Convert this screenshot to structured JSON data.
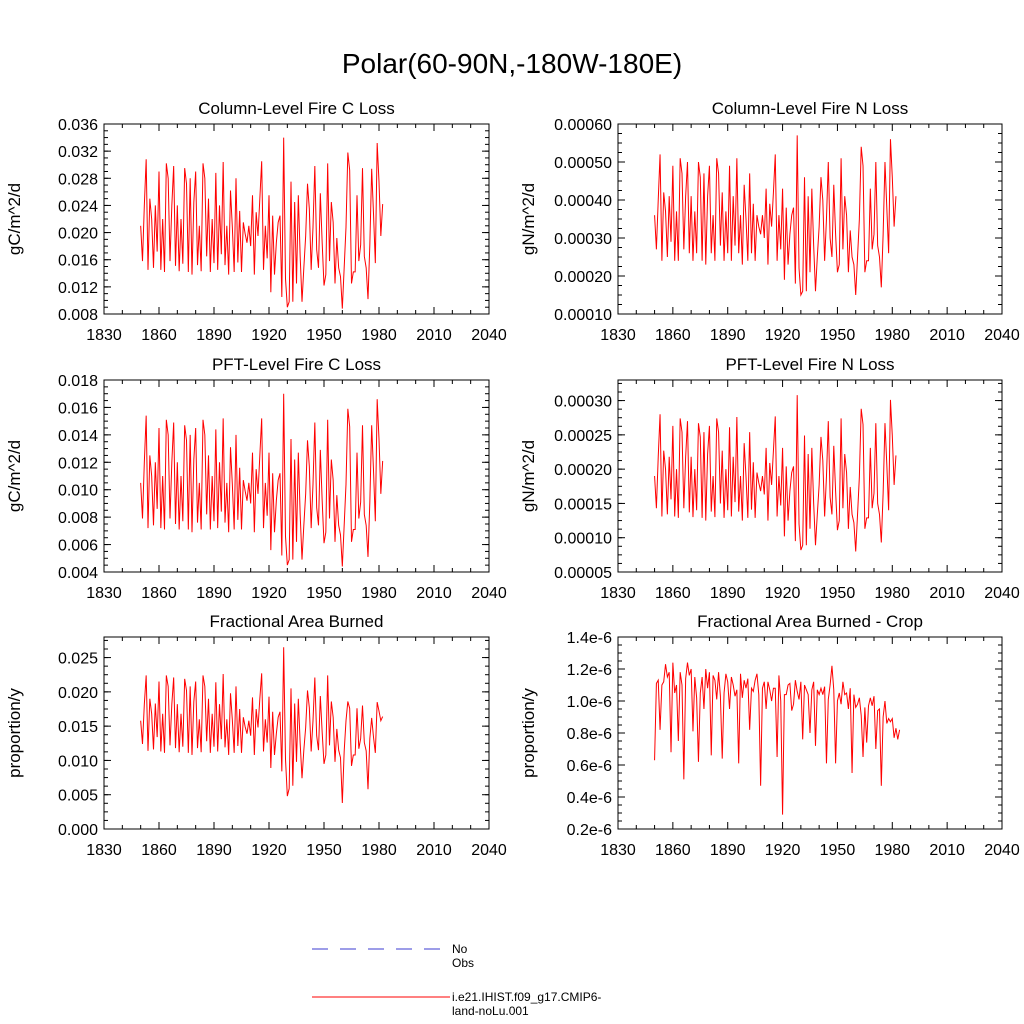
{
  "title": "Polar(60-90N,-180W-180E)",
  "legend": {
    "obs_label": "No Obs",
    "model_label": "i.e21.IHIST.f09_g17.CMIP6-land-noLu.001",
    "obs_color": "#3b3bd1",
    "model_color": "#ff0000"
  },
  "x_ticks": [
    "1830",
    "1860",
    "1890",
    "1920",
    "1950",
    "1980",
    "2010",
    "2040"
  ],
  "chart_data": [
    {
      "type": "line",
      "title": "Column-Level Fire C Loss",
      "ylabel": "gC/m^2/d",
      "xlim": [
        1830,
        2040
      ],
      "ylim": [
        0.008,
        0.036
      ],
      "y_ticks": [
        "0.008",
        "0.012",
        "0.016",
        "0.020",
        "0.024",
        "0.028",
        "0.032",
        "0.036"
      ],
      "series": [
        {
          "x_start": 1850,
          "values": [
            0.021,
            0.0158,
            0.024,
            0.0308,
            0.0145,
            0.025,
            0.022,
            0.0148,
            0.024,
            0.0172,
            0.029,
            0.0145,
            0.022,
            0.0142,
            0.0302,
            0.028,
            0.0158,
            0.024,
            0.0298,
            0.0151,
            0.024,
            0.0143,
            0.022,
            0.0154,
            0.0295,
            0.0272,
            0.0142,
            0.028,
            0.0138,
            0.0245,
            0.029,
            0.0152,
            0.021,
            0.0143,
            0.0302,
            0.028,
            0.0165,
            0.025,
            0.0142,
            0.022,
            0.0155,
            0.0288,
            0.0145,
            0.024,
            0.0168,
            0.0304,
            0.0152,
            0.021,
            0.0138,
            0.0262,
            0.0208,
            0.0142,
            0.028,
            0.0156,
            0.0232,
            0.0142,
            0.0215,
            0.0198,
            0.0185,
            0.021,
            0.018,
            0.0255,
            0.0138,
            0.023,
            0.0195,
            0.025,
            0.0305,
            0.0145,
            0.021,
            0.0162,
            0.0255,
            0.0112,
            0.0225,
            0.0138,
            0.0185,
            0.0215,
            0.0225,
            0.0105,
            0.034,
            0.0132,
            0.009,
            0.0098,
            0.0275,
            0.0098,
            0.0245,
            0.0125,
            0.0255,
            0.0165,
            0.0098,
            0.0148,
            0.0195,
            0.0272,
            0.0235,
            0.0145,
            0.0208,
            0.0298,
            0.0175,
            0.0148,
            0.0258,
            0.0185,
            0.0122,
            0.0138,
            0.0302,
            0.0158,
            0.0245,
            0.0215,
            0.0125,
            0.0192,
            0.0148,
            0.0135,
            0.0088,
            0.0148,
            0.0208,
            0.0318,
            0.0292,
            0.0125,
            0.0142,
            0.0142,
            0.0255,
            0.0158,
            0.0182,
            0.0295,
            0.0165,
            0.0148,
            0.0102,
            0.0182,
            0.0294,
            0.0228,
            0.0155,
            0.0332,
            0.0275,
            0.0195,
            0.0242
          ]
        }
      ]
    },
    {
      "type": "line",
      "title": "Column-Level Fire N Loss",
      "ylabel": "gN/m^2/d",
      "xlim": [
        1830,
        2040
      ],
      "ylim": [
        0.0001,
        0.0006
      ],
      "y_ticks": [
        "0.00010",
        "0.00020",
        "0.00030",
        "0.00040",
        "0.00050",
        "0.00060"
      ],
      "series": [
        {
          "x_start": 1850,
          "values": [
            0.00036,
            0.00027,
            0.0004,
            0.00052,
            0.00024,
            0.00042,
            0.00037,
            0.00025,
            0.00041,
            0.00029,
            0.00049,
            0.00024,
            0.00037,
            0.00024,
            0.00051,
            0.00047,
            0.00027,
            0.00041,
            0.0005,
            0.00026,
            0.00041,
            0.00024,
            0.00037,
            0.00026,
            0.0005,
            0.00046,
            0.00024,
            0.00047,
            0.00023,
            0.00041,
            0.00049,
            0.00026,
            0.00036,
            0.00024,
            0.00051,
            0.00047,
            0.00028,
            0.00042,
            0.00024,
            0.00037,
            0.00026,
            0.00049,
            0.00024,
            0.00041,
            0.00028,
            0.00051,
            0.00026,
            0.00036,
            0.00023,
            0.00044,
            0.00035,
            0.00024,
            0.00047,
            0.00026,
            0.00039,
            0.00024,
            0.00036,
            0.00033,
            0.00031,
            0.00036,
            0.0003,
            0.00043,
            0.00023,
            0.00039,
            0.00033,
            0.00042,
            0.00052,
            0.00024,
            0.00036,
            0.00027,
            0.00043,
            0.00019,
            0.00038,
            0.00023,
            0.00031,
            0.00036,
            0.00038,
            0.00018,
            0.00057,
            0.00022,
            0.00015,
            0.00016,
            0.00046,
            0.00016,
            0.00041,
            0.00021,
            0.00043,
            0.00028,
            0.00016,
            0.00025,
            0.00033,
            0.00046,
            0.0004,
            0.00024,
            0.00035,
            0.0005,
            0.0003,
            0.00025,
            0.00044,
            0.00031,
            0.00021,
            0.00023,
            0.00051,
            0.00027,
            0.00041,
            0.00036,
            0.00021,
            0.00032,
            0.00025,
            0.00023,
            0.00015,
            0.00025,
            0.00035,
            0.00054,
            0.00049,
            0.00021,
            0.00024,
            0.00024,
            0.00043,
            0.00027,
            0.00031,
            0.0005,
            0.00028,
            0.00025,
            0.00017,
            0.00031,
            0.0005,
            0.00038,
            0.00026,
            0.00056,
            0.00046,
            0.00033,
            0.00041
          ]
        }
      ]
    },
    {
      "type": "line",
      "title": "PFT-Level Fire C Loss",
      "ylabel": "gC/m^2/d",
      "xlim": [
        1830,
        2040
      ],
      "ylim": [
        0.004,
        0.018
      ],
      "y_ticks": [
        "0.004",
        "0.006",
        "0.008",
        "0.010",
        "0.012",
        "0.014",
        "0.016",
        "0.018"
      ],
      "series": [
        {
          "x_start": 1850,
          "values": [
            0.0105,
            0.0079,
            0.012,
            0.0154,
            0.0072,
            0.0125,
            0.011,
            0.0074,
            0.012,
            0.0086,
            0.0145,
            0.0072,
            0.011,
            0.0071,
            0.0151,
            0.014,
            0.0079,
            0.012,
            0.0149,
            0.0075,
            0.012,
            0.0071,
            0.011,
            0.0077,
            0.0147,
            0.0136,
            0.0071,
            0.014,
            0.0069,
            0.0122,
            0.0145,
            0.0076,
            0.0105,
            0.0071,
            0.0151,
            0.014,
            0.0082,
            0.0125,
            0.0071,
            0.011,
            0.0077,
            0.0144,
            0.0072,
            0.012,
            0.0084,
            0.0152,
            0.0076,
            0.0105,
            0.0069,
            0.0131,
            0.0104,
            0.0071,
            0.014,
            0.0078,
            0.0116,
            0.0071,
            0.0107,
            0.0099,
            0.0092,
            0.0105,
            0.009,
            0.0127,
            0.0069,
            0.0115,
            0.0097,
            0.0125,
            0.0152,
            0.0072,
            0.0105,
            0.0081,
            0.0127,
            0.0056,
            0.0112,
            0.0069,
            0.0092,
            0.0107,
            0.0112,
            0.0052,
            0.017,
            0.0066,
            0.0045,
            0.0049,
            0.0137,
            0.0049,
            0.0122,
            0.0062,
            0.0127,
            0.0082,
            0.0049,
            0.0074,
            0.0097,
            0.0136,
            0.0117,
            0.0072,
            0.0104,
            0.0149,
            0.0087,
            0.0074,
            0.0129,
            0.0092,
            0.0061,
            0.0069,
            0.0151,
            0.0079,
            0.0122,
            0.0107,
            0.0062,
            0.0096,
            0.0074,
            0.0067,
            0.0044,
            0.0074,
            0.0104,
            0.0159,
            0.0146,
            0.0062,
            0.0071,
            0.0071,
            0.0127,
            0.0079,
            0.0091,
            0.0147,
            0.0082,
            0.0074,
            0.0051,
            0.0091,
            0.0147,
            0.0114,
            0.0077,
            0.0166,
            0.0137,
            0.0097,
            0.0121
          ]
        }
      ]
    },
    {
      "type": "line",
      "title": "PFT-Level Fire N Loss",
      "ylabel": "gN/m^2/d",
      "xlim": [
        1830,
        2040
      ],
      "ylim": [
        5e-05,
        0.00033
      ],
      "y_ticks": [
        "0.00005",
        "0.00010",
        "0.00015",
        "0.00020",
        "0.00025",
        "0.00030"
      ],
      "series": [
        {
          "x_start": 1850,
          "values": [
            0.00019,
            0.000143,
            0.000218,
            0.00028,
            0.000131,
            0.000227,
            0.0002,
            0.000134,
            0.000218,
            0.000156,
            0.000263,
            0.000131,
            0.0002,
            0.000129,
            0.000274,
            0.000254,
            0.000143,
            0.000218,
            0.00027,
            0.000137,
            0.000218,
            0.00013,
            0.0002,
            0.00014,
            0.000267,
            0.000247,
            0.000129,
            0.000254,
            0.000125,
            0.000222,
            0.000263,
            0.000138,
            0.00019,
            0.00013,
            0.000274,
            0.000254,
            0.00015,
            0.000227,
            0.000129,
            0.0002,
            0.00014,
            0.000261,
            0.000131,
            0.000218,
            0.000152,
            0.000276,
            0.000138,
            0.00019,
            0.000125,
            0.000238,
            0.000189,
            0.000129,
            0.000254,
            0.000141,
            0.00021,
            0.000129,
            0.000195,
            0.00018,
            0.000168,
            0.00019,
            0.000163,
            0.000231,
            0.000125,
            0.000209,
            0.000177,
            0.000227,
            0.000277,
            0.000131,
            0.00019,
            0.000147,
            0.000231,
            0.000102,
            0.000204,
            0.000125,
            0.000168,
            0.000195,
            0.000204,
            9.5e-05,
            0.000308,
            0.00012,
            8.2e-05,
            8.9e-05,
            0.000249,
            8.9e-05,
            0.000222,
            0.000113,
            0.000231,
            0.00015,
            8.9e-05,
            0.000134,
            0.000177,
            0.000247,
            0.000213,
            0.000131,
            0.000189,
            0.00027,
            0.000159,
            0.000134,
            0.000234,
            0.000168,
            0.000111,
            0.000125,
            0.000274,
            0.000143,
            0.000222,
            0.000195,
            0.000113,
            0.000174,
            0.000134,
            0.000122,
            8e-05,
            0.000134,
            0.000189,
            0.000288,
            0.000265,
            0.000113,
            0.000129,
            0.000129,
            0.000231,
            0.000143,
            0.000165,
            0.000267,
            0.00015,
            0.000134,
            9.3e-05,
            0.000165,
            0.000267,
            0.000207,
            0.00014,
            0.000301,
            0.000249,
            0.000177,
            0.00022
          ]
        }
      ]
    },
    {
      "type": "line",
      "title": "Fractional Area Burned",
      "ylabel": "proportion/y",
      "xlim": [
        1830,
        2040
      ],
      "ylim": [
        0,
        0.028
      ],
      "y_ticks": [
        "0.000",
        "0.005",
        "0.010",
        "0.015",
        "0.020",
        "0.025"
      ],
      "series": [
        {
          "x_start": 1850,
          "values": [
            0.0158,
            0.0124,
            0.0182,
            0.0224,
            0.0114,
            0.019,
            0.0168,
            0.0116,
            0.0183,
            0.0134,
            0.0215,
            0.0113,
            0.0168,
            0.0111,
            0.0224,
            0.0208,
            0.0122,
            0.0182,
            0.0221,
            0.0118,
            0.0182,
            0.0112,
            0.0168,
            0.012,
            0.0219,
            0.0202,
            0.0111,
            0.0208,
            0.0108,
            0.0186,
            0.0215,
            0.0118,
            0.016,
            0.0112,
            0.0224,
            0.0208,
            0.0128,
            0.019,
            0.0111,
            0.0168,
            0.012,
            0.0214,
            0.0113,
            0.0182,
            0.0131,
            0.0226,
            0.0119,
            0.016,
            0.0108,
            0.0198,
            0.0159,
            0.0111,
            0.0208,
            0.0121,
            0.0175,
            0.0111,
            0.0163,
            0.0149,
            0.0139,
            0.0158,
            0.0136,
            0.0192,
            0.0108,
            0.0175,
            0.0148,
            0.019,
            0.0227,
            0.0113,
            0.016,
            0.0126,
            0.0193,
            0.0089,
            0.0171,
            0.0108,
            0.0139,
            0.0163,
            0.0171,
            0.0084,
            0.0265,
            0.0102,
            0.0048,
            0.0059,
            0.0205,
            0.0063,
            0.0183,
            0.0098,
            0.019,
            0.0125,
            0.0074,
            0.0115,
            0.0148,
            0.0202,
            0.0177,
            0.0113,
            0.0158,
            0.0221,
            0.0136,
            0.0115,
            0.0194,
            0.0141,
            0.0095,
            0.0108,
            0.0224,
            0.0122,
            0.0186,
            0.0163,
            0.0098,
            0.0146,
            0.0115,
            0.0104,
            0.0038,
            0.0113,
            0.0158,
            0.0186,
            0.0176,
            0.0092,
            0.0108,
            0.0108,
            0.0176,
            0.0117,
            0.0132,
            0.018,
            0.0126,
            0.0114,
            0.0058,
            0.0132,
            0.0162,
            0.0134,
            0.0111,
            0.0185,
            0.0172,
            0.0158,
            0.0164
          ]
        }
      ]
    },
    {
      "type": "line",
      "title": "Fractional Area Burned - Crop",
      "ylabel": "proportion/y",
      "xlim": [
        1830,
        2040
      ],
      "ylim": [
        2e-07,
        1.4e-06
      ],
      "y_ticks": [
        "0.2e-6",
        "0.4e-6",
        "0.6e-6",
        "0.8e-6",
        "1.0e-6",
        "1.2e-6",
        "1.4e-6"
      ],
      "series": [
        {
          "x_start": 1850,
          "values": [
            6.3e-07,
            1.11e-06,
            1.13e-06,
            8.2e-07,
            1.1e-06,
            1.12e-06,
            1.23e-06,
            1.15e-06,
            1.18e-06,
            6.8e-07,
            1.24e-06,
            1.05e-06,
            1.1e-06,
            7.5e-07,
            1.18e-06,
            1.1e-06,
            5.1e-07,
            1.14e-06,
            1.24e-06,
            1.16e-06,
            1.2e-06,
            8.1e-07,
            1.15e-06,
            1.02e-06,
            6.2e-07,
            1.05e-06,
            1.15e-06,
            9.5e-07,
            1.2e-06,
            1.08e-06,
            1.18e-06,
            6.6e-07,
            1.16e-06,
            1.13e-06,
            1.01e-06,
            1.18e-06,
            1.03e-06,
            6.4e-07,
            1.05e-06,
            1.17e-06,
            1.12e-06,
            9.5e-07,
            1.15e-06,
            1.1e-06,
            1.03e-06,
            1.07e-06,
            6.1e-07,
            1.17e-06,
            1.02e-06,
            1.13e-06,
            1.08e-06,
            1.14e-06,
            8.2e-07,
            1.08e-06,
            1.06e-06,
            1.13e-06,
            1.17e-06,
            1.04e-06,
            4.7e-07,
            1.08e-06,
            1.12e-06,
            9.5e-07,
            1.12e-06,
            1.07e-06,
            1e-06,
            1.08e-06,
            1.08e-06,
            6.5e-07,
            1.16e-06,
            1e-06,
            2.9e-07,
            1.04e-06,
            1.04e-06,
            1.1e-06,
            1.11e-06,
            9.4e-07,
            9.8e-07,
            1.13e-06,
            1.06e-06,
            1.01e-06,
            1.12e-06,
            7.6e-07,
            1.1e-06,
            1.07e-06,
            1.04e-06,
            8e-07,
            1.07e-06,
            1.12e-06,
            7.2e-07,
            1.07e-06,
            1.04e-06,
            1.08e-06,
            1.04e-06,
            1.09e-06,
            6.1e-07,
            1.01e-06,
            1.1e-06,
            1.22e-06,
            1.07e-06,
            6.1e-07,
            1e-06,
            1.05e-06,
            9.8e-07,
            1.12e-06,
            1.04e-06,
            1.05e-06,
            9.5e-07,
            1.08e-06,
            5.5e-07,
            1.04e-06,
            9.6e-07,
            9.8e-07,
            1.02e-06,
            9.1e-07,
            6.5e-07,
            9.6e-07,
            7.4e-07,
            9.7e-07,
            1.02e-06,
            9.7e-07,
            1.03e-06,
            7e-07,
            9.4e-07,
            9.5e-07,
            4.7e-07,
            9e-07,
            1e-06,
            8.6e-07,
            8.9e-07,
            8.7e-07,
            8.9e-07,
            7.7e-07,
            8.3e-07,
            7.6e-07,
            8.2e-07
          ]
        }
      ]
    }
  ]
}
